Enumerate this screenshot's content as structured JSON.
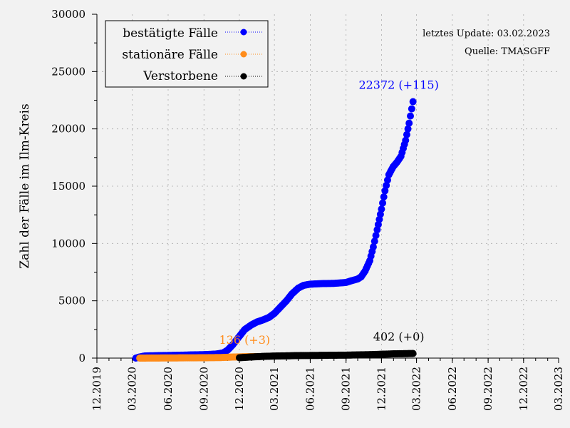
{
  "chart_data": {
    "type": "scatter",
    "ylabel": "Zahl der Fälle im Ilm-Kreis",
    "xlabel": "",
    "ylim": [
      0,
      30000
    ],
    "yticks": [
      0,
      5000,
      10000,
      15000,
      20000,
      25000,
      30000
    ],
    "xlim": [
      "2019-12-01",
      "2023-03-01"
    ],
    "xticks": [
      {
        "date": "2019-12-01",
        "label": "12.2019"
      },
      {
        "date": "2020-03-01",
        "label": "03.2020"
      },
      {
        "date": "2020-06-01",
        "label": "06.2020"
      },
      {
        "date": "2020-09-01",
        "label": "09.2020"
      },
      {
        "date": "2020-12-01",
        "label": "12.2020"
      },
      {
        "date": "2021-03-01",
        "label": "03.2021"
      },
      {
        "date": "2021-06-01",
        "label": "06.2021"
      },
      {
        "date": "2021-09-01",
        "label": "09.2021"
      },
      {
        "date": "2021-12-01",
        "label": "12.2021"
      },
      {
        "date": "2022-03-01",
        "label": "03.2022"
      },
      {
        "date": "2022-06-01",
        "label": "06.2022"
      },
      {
        "date": "2022-09-01",
        "label": "09.2022"
      },
      {
        "date": "2022-12-01",
        "label": "12.2022"
      },
      {
        "date": "2023-03-01",
        "label": "03.2023"
      }
    ],
    "grid": true,
    "legend_position": "top-left",
    "info_lines": [
      "letztes Update: 03.02.2023",
      "Quelle: TMASGFF"
    ],
    "series": [
      {
        "name": "bestätigte Fälle",
        "color": "#0000ff",
        "annotation": "22372 (+115)",
        "points": [
          [
            "2020-03-10",
            0
          ],
          [
            "2020-03-20",
            100
          ],
          [
            "2020-04-01",
            180
          ],
          [
            "2020-04-15",
            200
          ],
          [
            "2020-05-01",
            210
          ],
          [
            "2020-06-01",
            230
          ],
          [
            "2020-07-01",
            250
          ],
          [
            "2020-08-01",
            280
          ],
          [
            "2020-09-01",
            300
          ],
          [
            "2020-10-01",
            350
          ],
          [
            "2020-10-20",
            450
          ],
          [
            "2020-11-01",
            700
          ],
          [
            "2020-11-15",
            1200
          ],
          [
            "2020-12-01",
            1900
          ],
          [
            "2020-12-15",
            2500
          ],
          [
            "2021-01-01",
            2900
          ],
          [
            "2021-01-15",
            3150
          ],
          [
            "2021-02-01",
            3350
          ],
          [
            "2021-02-15",
            3550
          ],
          [
            "2021-03-01",
            3900
          ],
          [
            "2021-03-15",
            4400
          ],
          [
            "2021-04-01",
            5000
          ],
          [
            "2021-04-15",
            5600
          ],
          [
            "2021-05-01",
            6100
          ],
          [
            "2021-05-15",
            6350
          ],
          [
            "2021-06-01",
            6450
          ],
          [
            "2021-07-01",
            6500
          ],
          [
            "2021-08-01",
            6520
          ],
          [
            "2021-09-01",
            6600
          ],
          [
            "2021-09-15",
            6750
          ],
          [
            "2021-10-01",
            6900
          ],
          [
            "2021-10-10",
            7100
          ],
          [
            "2021-10-20",
            7600
          ],
          [
            "2021-11-01",
            8500
          ],
          [
            "2021-11-10",
            9700
          ],
          [
            "2021-11-20",
            11200
          ],
          [
            "2021-12-01",
            13000
          ],
          [
            "2021-12-10",
            14600
          ],
          [
            "2021-12-20",
            16000
          ],
          [
            "2021-12-31",
            16700
          ],
          [
            "2022-01-10",
            17100
          ],
          [
            "2022-01-20",
            17600
          ],
          [
            "2022-02-01",
            19000
          ],
          [
            "2022-02-10",
            20500
          ],
          [
            "2022-02-20",
            22372
          ]
        ]
      },
      {
        "name": "stationäre Fälle",
        "color": "#ff8c1a",
        "annotation": "136 (+3)",
        "points": [
          [
            "2020-03-20",
            0
          ],
          [
            "2020-05-01",
            10
          ],
          [
            "2020-07-01",
            20
          ],
          [
            "2020-09-01",
            30
          ],
          [
            "2020-10-15",
            50
          ],
          [
            "2020-11-15",
            90
          ],
          [
            "2020-12-15",
            120
          ],
          [
            "2021-01-20",
            136
          ]
        ]
      },
      {
        "name": "Verstorbene",
        "color": "#000000",
        "annotation": "402 (+0)",
        "points": [
          [
            "2020-12-01",
            30
          ],
          [
            "2021-01-01",
            100
          ],
          [
            "2021-02-01",
            150
          ],
          [
            "2021-03-01",
            180
          ],
          [
            "2021-05-01",
            220
          ],
          [
            "2021-07-01",
            240
          ],
          [
            "2021-09-01",
            260
          ],
          [
            "2021-11-01",
            300
          ],
          [
            "2022-01-01",
            370
          ],
          [
            "2022-02-20",
            402
          ]
        ]
      }
    ]
  }
}
